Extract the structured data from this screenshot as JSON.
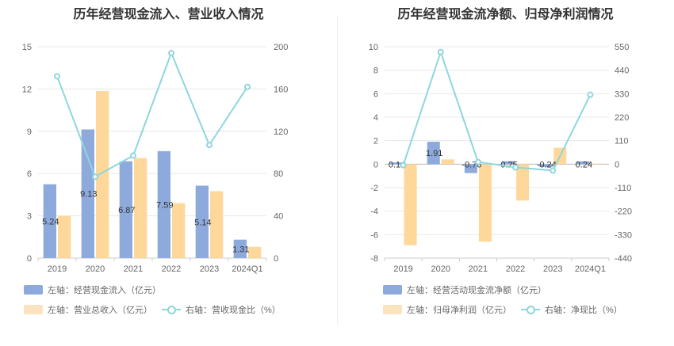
{
  "left": {
    "title": "历年经营现金流入、营业收入情况",
    "legend": {
      "bar1": "左轴：经营现金流入（亿元）",
      "bar2": "左轴：营业总收入（亿元）",
      "line": "右轴：营收现金比（%）"
    }
  },
  "right": {
    "title": "历年经营现金流净额、归母净利润情况",
    "legend": {
      "bar1": "左轴：经营活动现金流净额（亿元）",
      "bar2": "左轴：归母净利润（亿元）",
      "line": "右轴：净现比（%）"
    }
  },
  "colors": {
    "bar1": "#8eaadc",
    "bar2": "#fdd89a",
    "line": "#8fd6dd",
    "bar2_legend": "#fbe3c0"
  },
  "chart_data": [
    {
      "type": "bar",
      "title": "历年经营现金流入、营业收入情况",
      "categories": [
        "2019",
        "2020",
        "2021",
        "2022",
        "2023",
        "2024Q1"
      ],
      "y_left": {
        "min": 0,
        "max": 15,
        "ticks": [
          0,
          3,
          6,
          9,
          12,
          15
        ]
      },
      "y_right": {
        "min": 0,
        "max": 200,
        "ticks": [
          0,
          40,
          80,
          120,
          160,
          200
        ]
      },
      "series": [
        {
          "name": "左轴：经营现金流入（亿元）",
          "axis": "left",
          "kind": "bar",
          "values": [
            5.24,
            9.13,
            6.87,
            7.59,
            5.14,
            1.31
          ],
          "labels": [
            "5.24",
            "9.13",
            "6.87",
            "7.59",
            "5.14",
            "1.31"
          ]
        },
        {
          "name": "左轴：营业总收入（亿元）",
          "axis": "left",
          "kind": "bar",
          "values": [
            3.0,
            11.85,
            7.1,
            3.9,
            4.75,
            0.8
          ]
        },
        {
          "name": "右轴：营收现金比（%）",
          "axis": "right",
          "kind": "line",
          "values": [
            172,
            77,
            97,
            194,
            107,
            162
          ]
        }
      ],
      "grid": true
    },
    {
      "type": "bar",
      "title": "历年经营现金流净额、归母净利润情况",
      "categories": [
        "2019",
        "2020",
        "2021",
        "2022",
        "2023",
        "2024Q1"
      ],
      "y_left": {
        "min": -8,
        "max": 10,
        "ticks": [
          -8,
          -6,
          -4,
          -2,
          0,
          2,
          4,
          6,
          8,
          10
        ]
      },
      "y_right": {
        "min": -440,
        "max": 550,
        "ticks": [
          -440,
          -330,
          -220,
          -110,
          0,
          110,
          220,
          330,
          440,
          550
        ]
      },
      "series": [
        {
          "name": "左轴：经营活动现金流净额（亿元）",
          "axis": "left",
          "kind": "bar",
          "values": [
            0.14,
            1.91,
            -0.76,
            0.25,
            -0.24,
            0.24
          ],
          "labels": [
            "0.14",
            "1.91",
            "-0.76",
            "0.25",
            "-0.24",
            "0.24"
          ]
        },
        {
          "name": "左轴：归母净利润（亿元）",
          "axis": "left",
          "kind": "bar",
          "values": [
            -6.9,
            0.4,
            -6.6,
            -3.1,
            1.4,
            0.05
          ]
        },
        {
          "name": "右轴：净现比（%）",
          "axis": "right",
          "kind": "line",
          "values": [
            -5,
            525,
            10,
            -15,
            -30,
            325
          ]
        }
      ],
      "grid": true
    }
  ]
}
